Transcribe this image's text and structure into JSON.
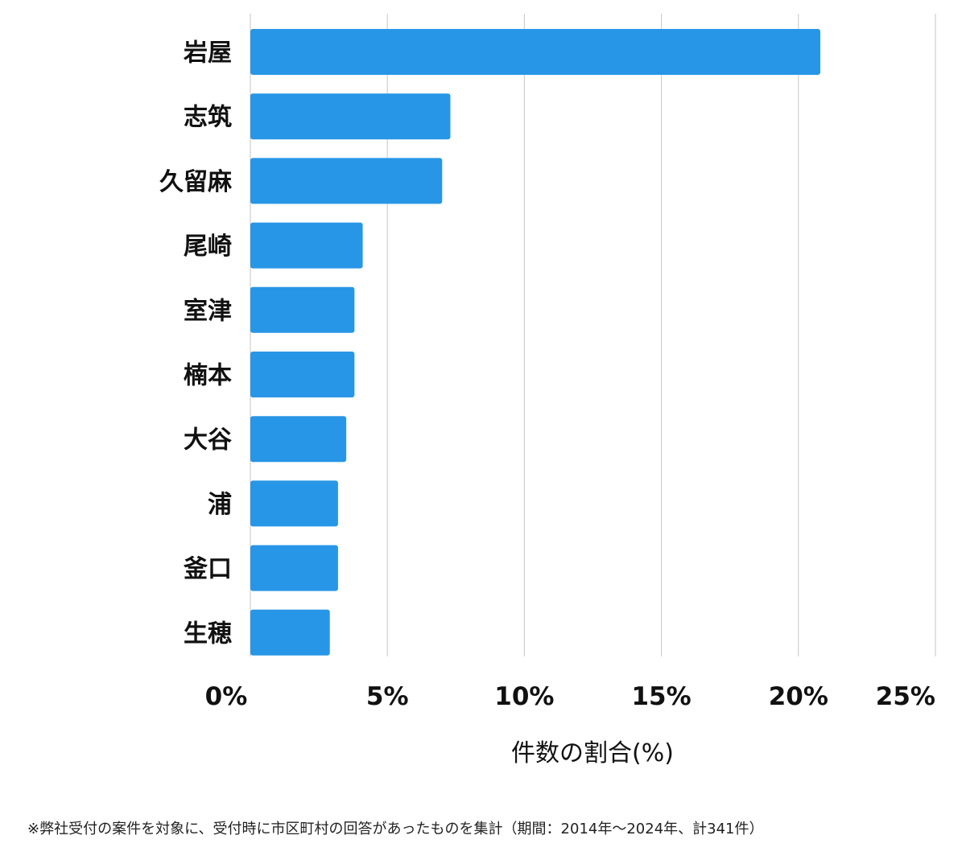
{
  "chart_data": {
    "type": "bar",
    "orientation": "horizontal",
    "categories": [
      "岩屋",
      "志筑",
      "久留麻",
      "尾崎",
      "室津",
      "楠本",
      "大谷",
      "浦",
      "釜口",
      "生穂"
    ],
    "values": [
      20.8,
      7.3,
      7.0,
      4.1,
      3.8,
      3.8,
      3.5,
      3.2,
      3.2,
      2.9
    ],
    "xlabel": "件数の割合(%)",
    "ylabel": "",
    "xlim": [
      0,
      25
    ],
    "xticks": [
      0,
      5,
      10,
      15,
      20,
      25
    ],
    "xtick_labels": [
      "0%",
      "5%",
      "10%",
      "15%",
      "20%",
      "25%"
    ],
    "grid": "vertical",
    "bar_color": "#2896e6",
    "legend": "none"
  },
  "footnote": "※弊社受付の案件を対象に、受付時に市区町村の回答があったものを集計（期間：2014年～2024年、計341件）"
}
